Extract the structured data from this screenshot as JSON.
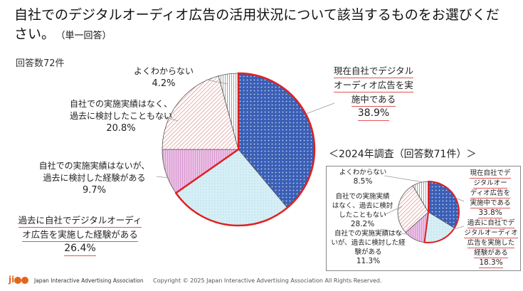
{
  "title": "自社でのデジタルオーディオ広告の活用状況について該当するものをお選びください。",
  "title_note": "（単一回答）",
  "respondents": "回答数72件",
  "chart_data": [
    {
      "type": "pie",
      "name": "2025",
      "labels": [
        "現在自社でデジタルオーディオ広告を実施中である",
        "過去に自社でデジタルオーディオ広告を実施した経験がある",
        "自社での実施実績はないが、過去に検討した経験がある",
        "自社での実施実績はなく、過去に検討したこともない",
        "よくわからない"
      ],
      "values": [
        38.9,
        26.4,
        9.7,
        20.8,
        4.2
      ],
      "value_labels": [
        "38.9%",
        "26.4%",
        "9.7%",
        "20.8%",
        "4.2%"
      ],
      "colors": [
        "#3a5fb5",
        "#d4eef5",
        "#e7b6e0",
        "#f6dada",
        "#ffffff"
      ]
    },
    {
      "type": "pie",
      "name": "2024",
      "title": "＜2024年調査（回答数71件）＞",
      "labels": [
        "現在自社でデジタルオーディオ広告を実施中である",
        "過去に自社でデジタルオーディオ広告を実施した経験がある",
        "自社での実施実績はないが、過去に検討した経験がある",
        "自社での実施実績はなく、過去に検討したこともない",
        "よくわからない"
      ],
      "values": [
        33.8,
        18.3,
        11.3,
        28.2,
        8.5
      ],
      "value_labels": [
        "33.8%",
        "18.3%",
        "11.3%",
        "28.2%",
        "8.5%"
      ],
      "colors": [
        "#3a5fb5",
        "#d4eef5",
        "#e7b6e0",
        "#f6dada",
        "#ffffff"
      ]
    }
  ],
  "main_labels": {
    "a1": "現在自社でデジタル",
    "a2": "オーディオ広告を実",
    "a3": "施中である",
    "b1": "過去に自社でデジタルオーディ",
    "b2": "オ広告を実施した経験がある",
    "c1": "自社での実施実績はないが、",
    "c2": "過去に検討した経験がある",
    "d1": "自社での実施実績はなく、",
    "d2": "過去に検討したこともない",
    "e1": "よくわからない"
  },
  "inset_labels": {
    "a": [
      "現在自社でデ",
      "ジタルオー",
      "ディオ広告を",
      "実施中である"
    ],
    "b": [
      "過去に自社でデ",
      "ジタルオーディオ",
      "広告を実施した",
      "経験がある"
    ],
    "c": [
      "自社での実施実績はな",
      "いが、過去に検討した経",
      "験がある"
    ],
    "d": [
      "自社での実施実績",
      "はなく、過去に検討",
      "したこともない"
    ],
    "e": [
      "よくわからない"
    ]
  },
  "footer": {
    "logo": "jiaa",
    "org": "Japan Interactive Advertising Association",
    "copyright": "Copyright © 2025 Japan Interactive Advertising Association All Rights Reserved."
  }
}
